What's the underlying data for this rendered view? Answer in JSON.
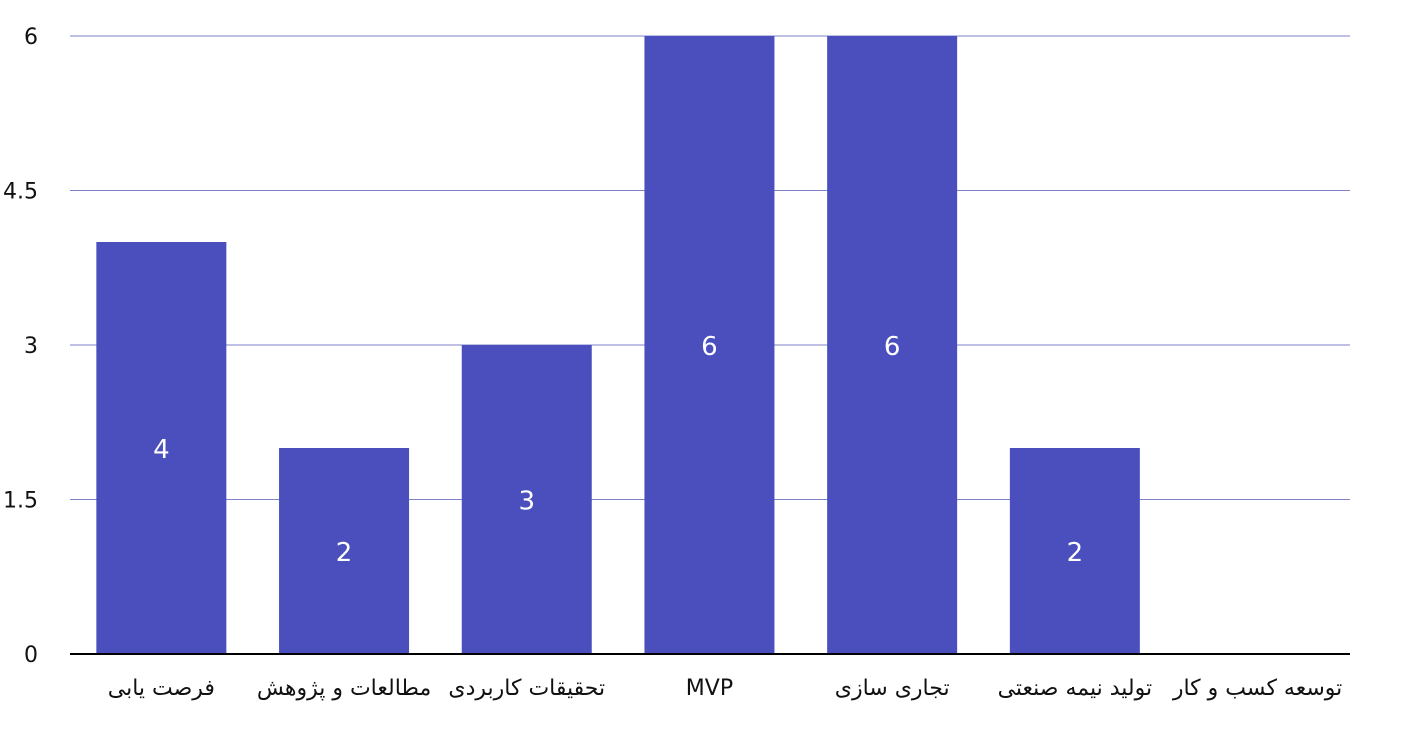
{
  "chart_data": {
    "type": "bar",
    "categories": [
      "فرصت یابی",
      "مطالعات و پژوهش",
      "تحقیقات کاربردی",
      "MVP",
      "تجاری سازی",
      "تولید نیمه صنعتی",
      "توسعه کسب و کار"
    ],
    "values": [
      4,
      2,
      3,
      6,
      6,
      2,
      0
    ],
    "data_labels": [
      "4",
      "2",
      "3",
      "6",
      "6",
      "2",
      ""
    ],
    "title": "",
    "xlabel": "",
    "ylabel": "",
    "ylim": [
      0,
      6
    ],
    "yticks": [
      0,
      1.5,
      3,
      4.5,
      6
    ],
    "ytick_labels": [
      "0",
      "1.5",
      "3",
      "4.5",
      "6"
    ],
    "grid": true,
    "legend": "none",
    "colors": {
      "bar": "#4a4fbd",
      "gridline": "#7f83c9",
      "axis": "#000000",
      "data_label": "#ffffff",
      "text": "#111111"
    }
  }
}
